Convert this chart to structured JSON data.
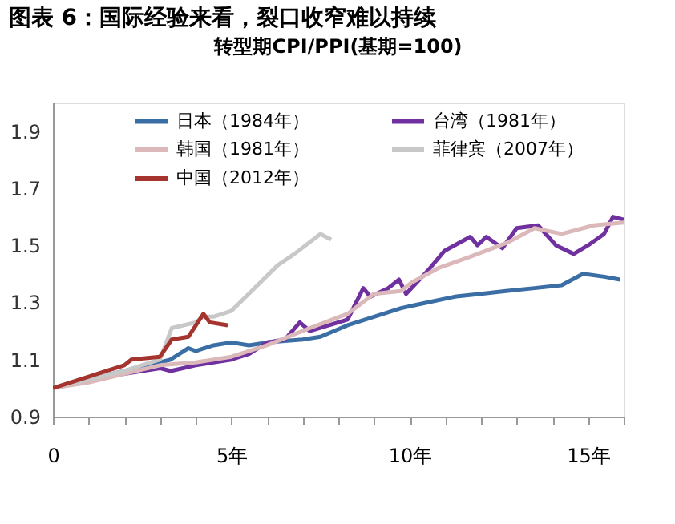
{
  "chart_data": {
    "type": "line",
    "title": "图表 6：国际经验来看，裂口收窄难以持续",
    "subtitle": "转型期CPI/PPI(基期=100)",
    "xlim": [
      0,
      16
    ],
    "ylim": [
      0.9,
      2.0
    ],
    "xticks": [
      0,
      {
        "value": 1,
        "label": null
      },
      {
        "value": 2,
        "label": null
      },
      {
        "value": 3,
        "label": null
      },
      {
        "value": 4,
        "label": null
      },
      {
        "value": 5,
        "label": "5年"
      },
      {
        "value": 6,
        "label": null
      },
      {
        "value": 7,
        "label": null
      },
      {
        "value": 8,
        "label": null
      },
      {
        "value": 9,
        "label": null
      },
      {
        "value": 10,
        "label": "10年"
      },
      {
        "value": 11,
        "label": null
      },
      {
        "value": 12,
        "label": null
      },
      {
        "value": 13,
        "label": null
      },
      {
        "value": 14,
        "label": null
      },
      {
        "value": 15,
        "label": "15年"
      },
      {
        "value": 16,
        "label": null
      }
    ],
    "yticks": [
      0.9,
      1.1,
      1.3,
      1.5,
      1.7,
      1.9
    ],
    "grid": false,
    "legend": "top",
    "marker": "none",
    "line_style": "solid",
    "series": [
      {
        "name": "日本（1984年）",
        "color": "#3a6ea5",
        "x": [
          0,
          2,
          3,
          3.3,
          3.8,
          4,
          4.5,
          5,
          5.5,
          6,
          7,
          7.5,
          8.26,
          9.76,
          10.5,
          11.26,
          12.0,
          12.7,
          13.5,
          14.26,
          14.86,
          15.46,
          15.9
        ],
        "values": [
          1.0,
          1.06,
          1.09,
          1.1,
          1.14,
          1.13,
          1.15,
          1.16,
          1.15,
          1.16,
          1.17,
          1.18,
          1.22,
          1.28,
          1.3,
          1.32,
          1.33,
          1.34,
          1.35,
          1.36,
          1.4,
          1.39,
          1.38
        ]
      },
      {
        "name": "台湾（1981年）",
        "color": "#7030a0",
        "x": [
          0,
          1,
          2,
          3,
          3.3,
          4,
          5,
          5.5,
          6,
          6.5,
          6.92,
          7.2,
          8.26,
          8.7,
          8.9,
          9.4,
          9.7,
          9.9,
          10.5,
          10.97,
          11.7,
          11.9,
          12.15,
          12.6,
          13.0,
          13.6,
          14.1,
          14.6,
          15.0,
          15.45,
          15.7,
          16
        ],
        "values": [
          1.0,
          1.03,
          1.05,
          1.07,
          1.06,
          1.08,
          1.1,
          1.12,
          1.16,
          1.17,
          1.23,
          1.2,
          1.24,
          1.35,
          1.32,
          1.35,
          1.38,
          1.33,
          1.41,
          1.48,
          1.53,
          1.5,
          1.53,
          1.49,
          1.56,
          1.57,
          1.5,
          1.47,
          1.5,
          1.54,
          1.6,
          1.59
        ]
      },
      {
        "name": "韩国（1981年）",
        "color": "#dbb9ba",
        "x": [
          0,
          1,
          2,
          3,
          4,
          5,
          6,
          7.2,
          8.26,
          9.0,
          9.76,
          10.06,
          10.8,
          11.7,
          12.75,
          13.5,
          14.26,
          15.16,
          16
        ],
        "values": [
          1.0,
          1.02,
          1.05,
          1.08,
          1.09,
          1.11,
          1.15,
          1.21,
          1.26,
          1.33,
          1.34,
          1.37,
          1.42,
          1.46,
          1.51,
          1.56,
          1.54,
          1.57,
          1.58
        ]
      },
      {
        "name": "菲律宾（2007年）",
        "color": "#c8c8c8",
        "x": [
          0,
          1,
          2,
          3,
          3.33,
          4,
          4.2,
          4.5,
          5,
          5.57,
          6.3,
          6.77,
          7.5,
          7.8
        ],
        "values": [
          1.0,
          1.03,
          1.06,
          1.1,
          1.21,
          1.23,
          1.25,
          1.25,
          1.27,
          1.34,
          1.43,
          1.47,
          1.54,
          1.52
        ]
      },
      {
        "name": "中国（2012年）",
        "color": "#a5342e",
        "x": [
          0,
          1,
          1.5,
          2,
          2.2,
          3,
          3.33,
          3.8,
          4.22,
          4.4,
          4.9
        ],
        "values": [
          1.0,
          1.04,
          1.06,
          1.08,
          1.1,
          1.11,
          1.17,
          1.18,
          1.26,
          1.23,
          1.22
        ]
      }
    ]
  }
}
